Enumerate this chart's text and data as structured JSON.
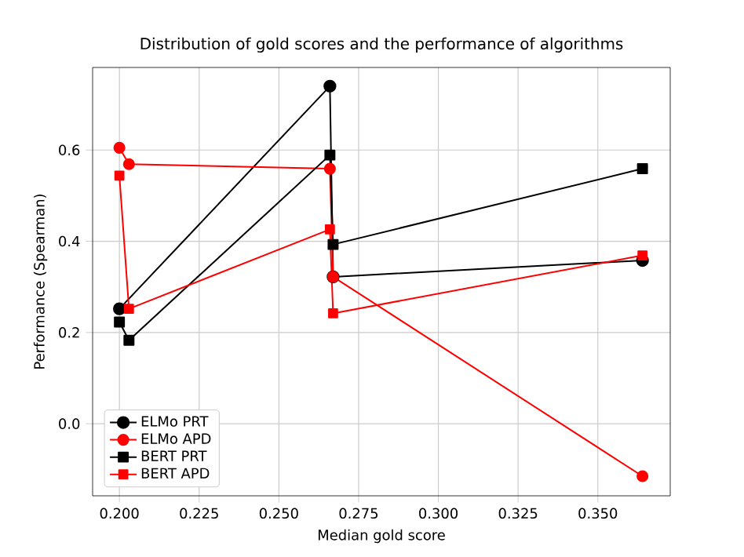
{
  "chart_data": {
    "type": "line",
    "title": "Distribution of gold scores and the performance of algorithms",
    "xlabel": "Median gold score",
    "ylabel": "Performance (Spearman)",
    "xlim": [
      0.1916,
      0.3727
    ],
    "ylim": [
      -0.158,
      0.781
    ],
    "xticks": [
      {
        "value": 0.2,
        "label": "0.200"
      },
      {
        "value": 0.225,
        "label": "0.225"
      },
      {
        "value": 0.25,
        "label": "0.250"
      },
      {
        "value": 0.275,
        "label": "0.275"
      },
      {
        "value": 0.3,
        "label": "0.300"
      },
      {
        "value": 0.325,
        "label": "0.325"
      },
      {
        "value": 0.35,
        "label": "0.350"
      }
    ],
    "yticks": [
      {
        "value": 0.0,
        "label": "0.0"
      },
      {
        "value": 0.2,
        "label": "0.2"
      },
      {
        "value": 0.4,
        "label": "0.4"
      },
      {
        "value": 0.6,
        "label": "0.6"
      }
    ],
    "grid": true,
    "legend": "bottom left",
    "series": [
      {
        "name": "ELMo PRT",
        "color": "#000000",
        "marker": "circle",
        "x": [
          0.2,
          0.266,
          0.267,
          0.364
        ],
        "values": [
          0.252,
          0.74,
          0.322,
          0.358
        ]
      },
      {
        "name": "ELMo APD",
        "color": "#ff0000",
        "marker": "circle",
        "x": [
          0.2,
          0.203,
          0.266,
          0.267,
          0.364
        ],
        "values": [
          0.605,
          0.569,
          0.559,
          0.322,
          -0.115
        ]
      },
      {
        "name": "BERT PRT",
        "color": "#000000",
        "marker": "square",
        "x": [
          0.2,
          0.203,
          0.266,
          0.267,
          0.364
        ],
        "values": [
          0.223,
          0.183,
          0.589,
          0.393,
          0.559
        ]
      },
      {
        "name": "BERT APD",
        "color": "#ff0000",
        "marker": "square",
        "x": [
          0.2,
          0.203,
          0.266,
          0.267,
          0.364
        ],
        "values": [
          0.544,
          0.252,
          0.426,
          0.242,
          0.369
        ]
      }
    ]
  }
}
